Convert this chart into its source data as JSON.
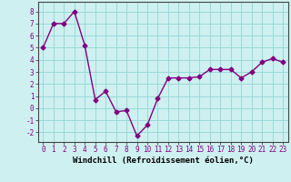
{
  "x": [
    0,
    1,
    2,
    3,
    4,
    5,
    6,
    7,
    8,
    9,
    10,
    11,
    12,
    13,
    14,
    15,
    16,
    17,
    18,
    19,
    20,
    21,
    22,
    23
  ],
  "y": [
    5.0,
    7.0,
    7.0,
    8.0,
    5.2,
    0.7,
    1.4,
    -0.3,
    -0.2,
    -2.3,
    -1.4,
    0.8,
    2.5,
    2.5,
    2.5,
    2.6,
    3.2,
    3.2,
    3.2,
    2.5,
    3.0,
    3.8,
    4.1,
    3.8
  ],
  "line_color": "#800080",
  "marker": "D",
  "marker_size": 2.5,
  "bg_color": "#cff0f0",
  "grid_color": "#99d9d9",
  "xlabel": "Windchill (Refroidissement éolien,°C)",
  "ylim": [
    -2.8,
    8.8
  ],
  "xlim": [
    -0.5,
    23.5
  ],
  "yticks": [
    -2,
    -1,
    0,
    1,
    2,
    3,
    4,
    5,
    6,
    7,
    8
  ],
  "xticks": [
    0,
    1,
    2,
    3,
    4,
    5,
    6,
    7,
    8,
    9,
    10,
    11,
    12,
    13,
    14,
    15,
    16,
    17,
    18,
    19,
    20,
    21,
    22,
    23
  ],
  "tick_fontsize": 5.5,
  "xlabel_fontsize": 6.5,
  "line_width": 1.0
}
